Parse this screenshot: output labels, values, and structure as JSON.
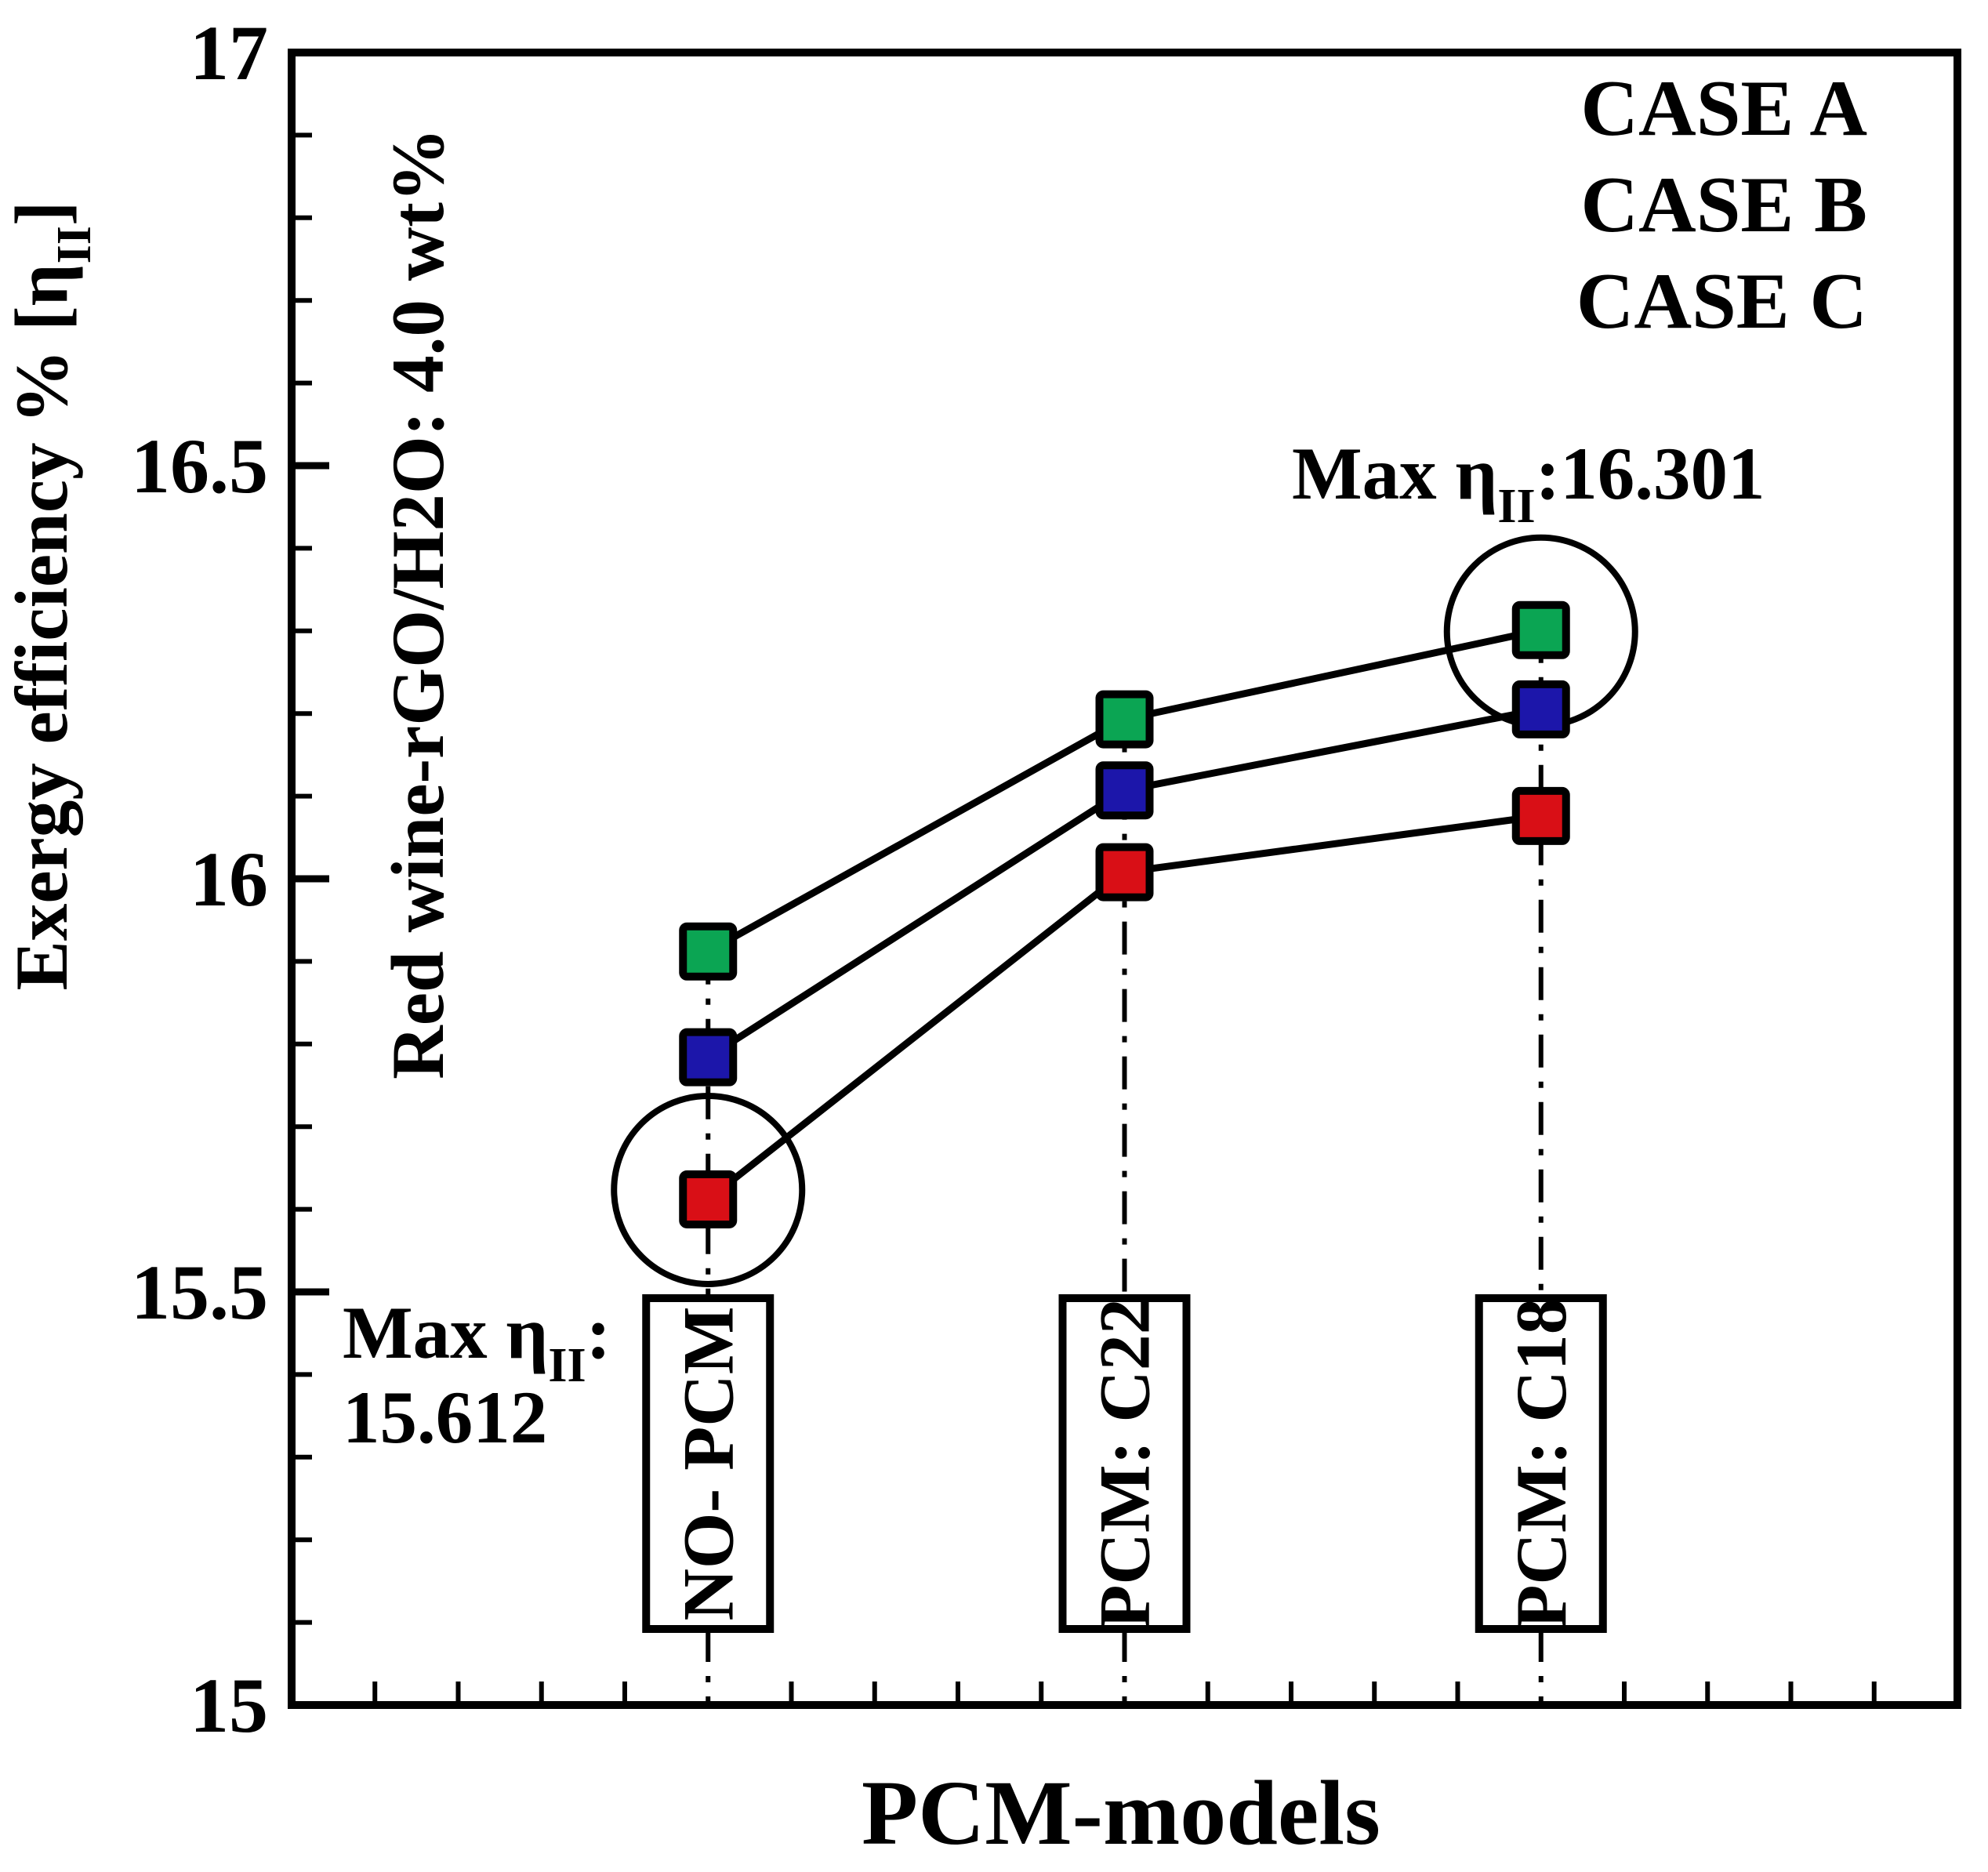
{
  "figure": {
    "background": "#ffffff",
    "axis_color": "#000000"
  },
  "chart_data": {
    "type": "line",
    "title": "",
    "xlabel": "PCM-models",
    "ylabel_plain": "Exergy efficiency % [η_II]",
    "ylabel_parts": [
      {
        "t": "Exergy efficiency % [η"
      },
      {
        "t": "II",
        "sub": true
      },
      {
        "t": "]"
      }
    ],
    "categories": [
      "NO- PCM",
      "PCM: C22",
      "PCM: C18"
    ],
    "series": [
      {
        "name": "CASE A",
        "color": "#d90f16",
        "marker": "square",
        "values": [
          15.612,
          16.008,
          16.076
        ]
      },
      {
        "name": "CASE B",
        "color": "#1c16aa",
        "marker": "square",
        "values": [
          15.784,
          16.107,
          16.205
        ]
      },
      {
        "name": "CASE C",
        "color": "#0ba553",
        "marker": "square",
        "values": [
          15.912,
          16.193,
          16.301
        ]
      }
    ],
    "ylim": [
      15,
      17
    ],
    "y_major_ticks": [
      "15",
      "15.5",
      "16",
      "16.5",
      "17"
    ],
    "y_minor_step": 0.1,
    "x_minor_divisions": 20,
    "grid": false,
    "legend_position": "top-right",
    "inside_note": "Red wine-rGO/H2O: 4.0 wt%",
    "highlights": [
      {
        "category_index": 0,
        "series_index": 0,
        "value": 15.612,
        "label_parts_line1": [
          {
            "t": "Max η"
          },
          {
            "t": "II",
            "sub": true
          },
          {
            "t": ":"
          }
        ],
        "label_line2": "15.612"
      },
      {
        "category_index": 2,
        "series_index": 2,
        "value": 16.301,
        "label_parts_line1": [
          {
            "t": "Max η"
          },
          {
            "t": "II",
            "sub": true
          },
          {
            "t": ":16.301"
          }
        ],
        "label_line2": ""
      }
    ]
  }
}
